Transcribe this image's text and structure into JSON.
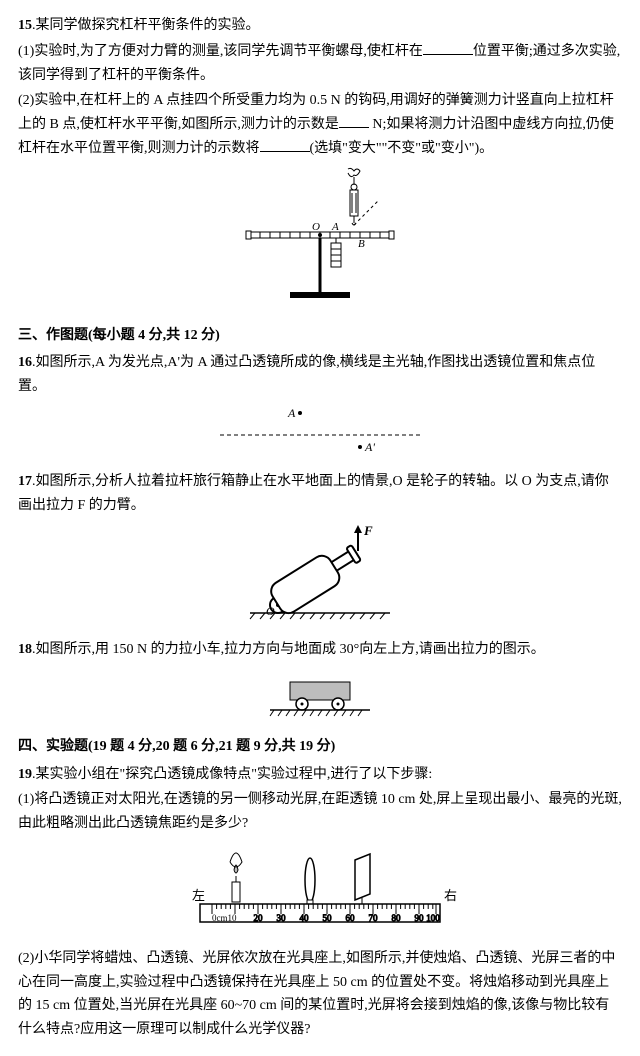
{
  "q15": {
    "num": "15",
    "title": ".某同学做探究杠杆平衡条件的实验。",
    "p1a": "(1)实验时,为了方便对力臂的测量,该同学先调节平衡螺母,使杠杆在",
    "p1b": "位置平衡;通过多次实验,该同学得到了杠杆的平衡条件。",
    "p2a": "(2)实验中,在杠杆上的 A 点挂四个所受重力均为 0.5 N 的钩码,用调好的弹簧测力计竖直向上拉杠杆上的 B 点,使杠杆水平平衡,如图所示,测力计的示数是",
    "p2b": " N;如果将测力计沿图中虚线方向拉,仍使杠杆在水平位置平衡,则测力计的示数将",
    "p2c": "(选填\"变大\"\"不变\"或\"变小\")。",
    "labels": {
      "O": "O",
      "A": "A",
      "B": "B"
    }
  },
  "sec3": {
    "header": "三、作图题(每小题 4 分,共 12 分)"
  },
  "q16": {
    "num": "16",
    "text": ".如图所示,A 为发光点,A'为 A 通过凸透镜所成的像,横线是主光轴,作图找出透镜位置和焦点位置。",
    "A": "A",
    "Ap": "A'"
  },
  "q17": {
    "num": "17",
    "text": ".如图所示,分析人拉着拉杆旅行箱静止在水平地面上的情景,O 是轮子的转轴。以 O 为支点,请你画出拉力 F 的力臂。",
    "O": "O",
    "F": "F"
  },
  "q18": {
    "num": "18",
    "text": ".如图所示,用 150 N 的力拉小车,拉力方向与地面成 30°向左上方,请画出拉力的图示。"
  },
  "sec4": {
    "header": "四、实验题(19 题 4 分,20 题 6 分,21 题 9 分,共 19 分)"
  },
  "q19": {
    "num": "19",
    "intro": ".某实验小组在\"探究凸透镜成像特点\"实验过程中,进行了以下步骤:",
    "p1": "(1)将凸透镜正对太阳光,在透镜的另一侧移动光屏,在距透镜 10 cm 处,屏上呈现出最小、最亮的光斑,由此粗略测出此凸透镜焦距约是多少?",
    "left": "左",
    "right": "右",
    "scaleStart": "0cm10",
    "scaleTicks": [
      "20",
      "30",
      "40",
      "50",
      "60",
      "70",
      "80",
      "90",
      "100"
    ],
    "p2": "(2)小华同学将蜡烛、凸透镜、光屏依次放在光具座上,如图所示,并使烛焰、凸透镜、光屏三者的中心在同一高度上,实验过程中凸透镜保持在光具座上 50 cm 的位置处不变。将烛焰移动到光具座上的 15 cm 位置处,当光屏在光具座 60~70 cm 间的某位置时,光屏将会接到烛焰的像,该像与物比较有什么特点?应用这一原理可以制成什么光学仪器?"
  },
  "style": {
    "stroke": "#000000",
    "fill_white": "#ffffff",
    "fill_gray": "#bdbdbd",
    "fill_dark": "#555555"
  }
}
